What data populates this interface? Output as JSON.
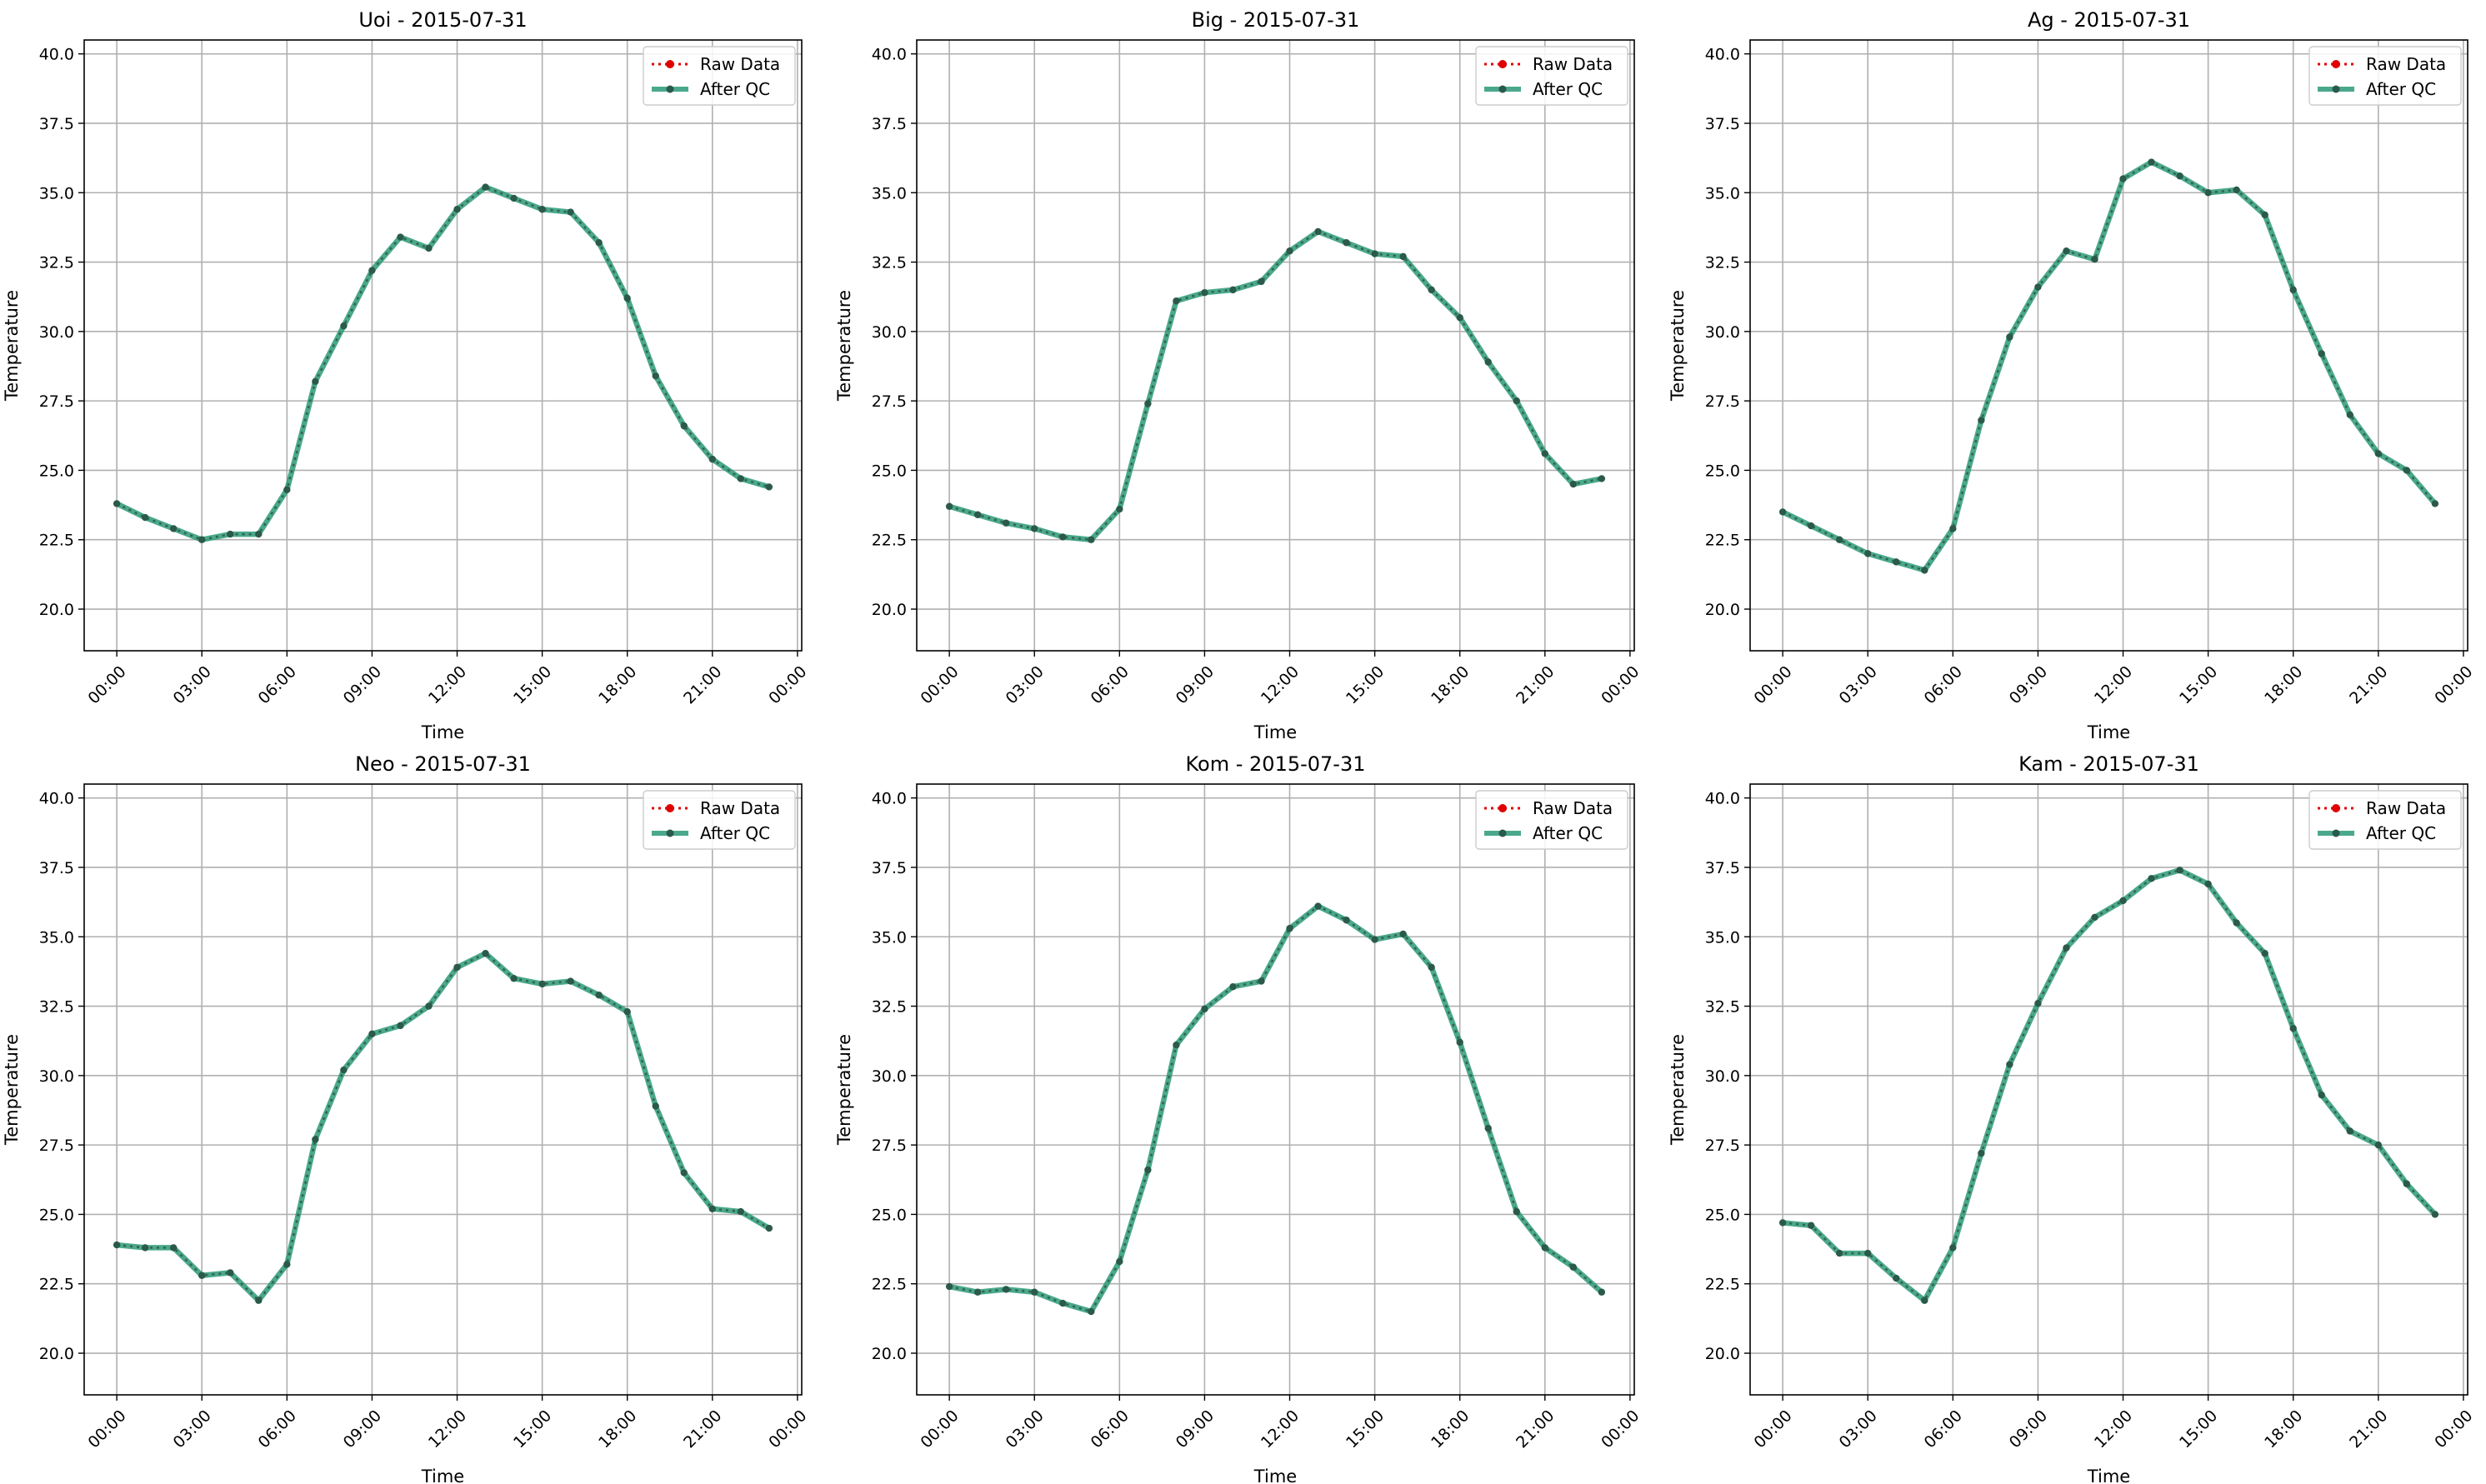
{
  "figure": {
    "date": "2015-07-31"
  },
  "legend": {
    "raw_label": "Raw Data",
    "qc_label": "After QC",
    "placement": "upper right"
  },
  "colors": {
    "raw": "#e00000",
    "qc": "#2a9a78",
    "marker": "#2b5a4a",
    "grid": "#b0b0b0",
    "axis": "#000000"
  },
  "chart_data": [
    {
      "type": "line",
      "title": "Uoi - 2015-07-31",
      "xlabel": "Time",
      "ylabel": "Temperature",
      "ylim": [
        18.5,
        40.5
      ],
      "yticks": [
        "20.0",
        "22.5",
        "25.0",
        "27.5",
        "30.0",
        "32.5",
        "35.0",
        "37.5",
        "40.0"
      ],
      "xticks": [
        "00:00",
        "03:00",
        "06:00",
        "09:00",
        "12:00",
        "15:00",
        "18:00",
        "21:00",
        "00:00"
      ],
      "grid": true,
      "x": [
        "00:00",
        "01:00",
        "02:00",
        "03:00",
        "04:00",
        "05:00",
        "06:00",
        "07:00",
        "08:00",
        "09:00",
        "10:00",
        "11:00",
        "12:00",
        "13:00",
        "14:00",
        "15:00",
        "16:00",
        "17:00",
        "18:00",
        "19:00",
        "20:00",
        "21:00",
        "22:00",
        "23:00"
      ],
      "series": [
        {
          "name": "Raw Data",
          "values": [
            23.8,
            23.3,
            22.9,
            22.5,
            22.7,
            22.7,
            24.3,
            28.2,
            30.2,
            32.2,
            33.4,
            33.0,
            34.4,
            35.2,
            34.8,
            34.4,
            34.3,
            33.2,
            31.2,
            28.4,
            26.6,
            25.4,
            24.7,
            24.4
          ]
        },
        {
          "name": "After QC",
          "values": [
            23.8,
            23.3,
            22.9,
            22.5,
            22.7,
            22.7,
            24.3,
            28.2,
            30.2,
            32.2,
            33.4,
            33.0,
            34.4,
            35.2,
            34.8,
            34.4,
            34.3,
            33.2,
            31.2,
            28.4,
            26.6,
            25.4,
            24.7,
            24.4
          ]
        }
      ]
    },
    {
      "type": "line",
      "title": "Big - 2015-07-31",
      "xlabel": "Time",
      "ylabel": "Temperature",
      "ylim": [
        18.5,
        40.5
      ],
      "yticks": [
        "20.0",
        "22.5",
        "25.0",
        "27.5",
        "30.0",
        "32.5",
        "35.0",
        "37.5",
        "40.0"
      ],
      "xticks": [
        "00:00",
        "03:00",
        "06:00",
        "09:00",
        "12:00",
        "15:00",
        "18:00",
        "21:00",
        "00:00"
      ],
      "grid": true,
      "x": [
        "00:00",
        "01:00",
        "02:00",
        "03:00",
        "04:00",
        "05:00",
        "06:00",
        "07:00",
        "08:00",
        "09:00",
        "10:00",
        "11:00",
        "12:00",
        "13:00",
        "14:00",
        "15:00",
        "16:00",
        "17:00",
        "18:00",
        "19:00",
        "20:00",
        "21:00",
        "22:00",
        "23:00"
      ],
      "series": [
        {
          "name": "Raw Data",
          "values": [
            23.7,
            23.4,
            23.1,
            22.9,
            22.6,
            22.5,
            23.6,
            27.4,
            31.1,
            31.4,
            31.5,
            31.8,
            32.9,
            33.6,
            33.2,
            32.8,
            32.7,
            31.5,
            30.5,
            28.9,
            27.5,
            25.6,
            24.5,
            24.7
          ]
        },
        {
          "name": "After QC",
          "values": [
            23.7,
            23.4,
            23.1,
            22.9,
            22.6,
            22.5,
            23.6,
            27.4,
            31.1,
            31.4,
            31.5,
            31.8,
            32.9,
            33.6,
            33.2,
            32.8,
            32.7,
            31.5,
            30.5,
            28.9,
            27.5,
            25.6,
            24.5,
            24.7
          ]
        }
      ]
    },
    {
      "type": "line",
      "title": "Ag - 2015-07-31",
      "xlabel": "Time",
      "ylabel": "Temperature",
      "ylim": [
        18.5,
        40.5
      ],
      "yticks": [
        "20.0",
        "22.5",
        "25.0",
        "27.5",
        "30.0",
        "32.5",
        "35.0",
        "37.5",
        "40.0"
      ],
      "xticks": [
        "00:00",
        "03:00",
        "06:00",
        "09:00",
        "12:00",
        "15:00",
        "18:00",
        "21:00",
        "00:00"
      ],
      "grid": true,
      "x": [
        "00:00",
        "01:00",
        "02:00",
        "03:00",
        "04:00",
        "05:00",
        "06:00",
        "07:00",
        "08:00",
        "09:00",
        "10:00",
        "11:00",
        "12:00",
        "13:00",
        "14:00",
        "15:00",
        "16:00",
        "17:00",
        "18:00",
        "19:00",
        "20:00",
        "21:00",
        "22:00",
        "23:00"
      ],
      "series": [
        {
          "name": "Raw Data",
          "values": [
            23.5,
            23.0,
            22.5,
            22.0,
            21.7,
            21.4,
            22.9,
            26.8,
            29.8,
            31.6,
            32.9,
            32.6,
            35.5,
            36.1,
            35.6,
            35.0,
            35.1,
            34.2,
            31.5,
            29.2,
            27.0,
            25.6,
            25.0,
            23.8
          ]
        },
        {
          "name": "After QC",
          "values": [
            23.5,
            23.0,
            22.5,
            22.0,
            21.7,
            21.4,
            22.9,
            26.8,
            29.8,
            31.6,
            32.9,
            32.6,
            35.5,
            36.1,
            35.6,
            35.0,
            35.1,
            34.2,
            31.5,
            29.2,
            27.0,
            25.6,
            25.0,
            23.8
          ]
        }
      ]
    },
    {
      "type": "line",
      "title": "Neo - 2015-07-31",
      "xlabel": "Time",
      "ylabel": "Temperature",
      "ylim": [
        18.5,
        40.5
      ],
      "yticks": [
        "20.0",
        "22.5",
        "25.0",
        "27.5",
        "30.0",
        "32.5",
        "35.0",
        "37.5",
        "40.0"
      ],
      "xticks": [
        "00:00",
        "03:00",
        "06:00",
        "09:00",
        "12:00",
        "15:00",
        "18:00",
        "21:00",
        "00:00"
      ],
      "grid": true,
      "x": [
        "00:00",
        "01:00",
        "02:00",
        "03:00",
        "04:00",
        "05:00",
        "06:00",
        "07:00",
        "08:00",
        "09:00",
        "10:00",
        "11:00",
        "12:00",
        "13:00",
        "14:00",
        "15:00",
        "16:00",
        "17:00",
        "18:00",
        "19:00",
        "20:00",
        "21:00",
        "22:00",
        "23:00"
      ],
      "series": [
        {
          "name": "Raw Data",
          "values": [
            23.9,
            23.8,
            23.8,
            22.8,
            22.9,
            21.9,
            23.2,
            27.7,
            30.2,
            31.5,
            31.8,
            32.5,
            33.9,
            34.4,
            33.5,
            33.3,
            33.4,
            32.9,
            32.3,
            28.9,
            26.5,
            25.2,
            25.1,
            24.5
          ]
        },
        {
          "name": "After QC",
          "values": [
            23.9,
            23.8,
            23.8,
            22.8,
            22.9,
            21.9,
            23.2,
            27.7,
            30.2,
            31.5,
            31.8,
            32.5,
            33.9,
            34.4,
            33.5,
            33.3,
            33.4,
            32.9,
            32.3,
            28.9,
            26.5,
            25.2,
            25.1,
            24.5
          ]
        }
      ]
    },
    {
      "type": "line",
      "title": "Kom - 2015-07-31",
      "xlabel": "Time",
      "ylabel": "Temperature",
      "ylim": [
        18.5,
        40.5
      ],
      "yticks": [
        "20.0",
        "22.5",
        "25.0",
        "27.5",
        "30.0",
        "32.5",
        "35.0",
        "37.5",
        "40.0"
      ],
      "xticks": [
        "00:00",
        "03:00",
        "06:00",
        "09:00",
        "12:00",
        "15:00",
        "18:00",
        "21:00",
        "00:00"
      ],
      "grid": true,
      "x": [
        "00:00",
        "01:00",
        "02:00",
        "03:00",
        "04:00",
        "05:00",
        "06:00",
        "07:00",
        "08:00",
        "09:00",
        "10:00",
        "11:00",
        "12:00",
        "13:00",
        "14:00",
        "15:00",
        "16:00",
        "17:00",
        "18:00",
        "19:00",
        "20:00",
        "21:00",
        "22:00",
        "23:00"
      ],
      "series": [
        {
          "name": "Raw Data",
          "values": [
            22.4,
            22.2,
            22.3,
            22.2,
            21.8,
            21.5,
            23.3,
            26.6,
            31.1,
            32.4,
            33.2,
            33.4,
            35.3,
            36.1,
            35.6,
            34.9,
            35.1,
            33.9,
            31.2,
            28.1,
            25.1,
            23.8,
            23.1,
            22.2
          ]
        },
        {
          "name": "After QC",
          "values": [
            22.4,
            22.2,
            22.3,
            22.2,
            21.8,
            21.5,
            23.3,
            26.6,
            31.1,
            32.4,
            33.2,
            33.4,
            35.3,
            36.1,
            35.6,
            34.9,
            35.1,
            33.9,
            31.2,
            28.1,
            25.1,
            23.8,
            23.1,
            22.2
          ]
        }
      ]
    },
    {
      "type": "line",
      "title": "Kam - 2015-07-31",
      "xlabel": "Time",
      "ylabel": "Temperature",
      "ylim": [
        18.5,
        40.5
      ],
      "yticks": [
        "20.0",
        "22.5",
        "25.0",
        "27.5",
        "30.0",
        "32.5",
        "35.0",
        "37.5",
        "40.0"
      ],
      "xticks": [
        "00:00",
        "03:00",
        "06:00",
        "09:00",
        "12:00",
        "15:00",
        "18:00",
        "21:00",
        "00:00"
      ],
      "grid": true,
      "x": [
        "00:00",
        "01:00",
        "02:00",
        "03:00",
        "04:00",
        "05:00",
        "06:00",
        "07:00",
        "08:00",
        "09:00",
        "10:00",
        "11:00",
        "12:00",
        "13:00",
        "14:00",
        "15:00",
        "16:00",
        "17:00",
        "18:00",
        "19:00",
        "20:00",
        "21:00",
        "22:00",
        "23:00"
      ],
      "series": [
        {
          "name": "Raw Data",
          "values": [
            24.7,
            24.6,
            23.6,
            23.6,
            22.7,
            21.9,
            23.8,
            27.2,
            30.4,
            32.6,
            34.6,
            35.7,
            36.3,
            37.1,
            37.4,
            36.9,
            35.5,
            34.4,
            31.7,
            29.3,
            28.0,
            27.5,
            26.1,
            25.0
          ]
        },
        {
          "name": "After QC",
          "values": [
            24.7,
            24.6,
            23.6,
            23.6,
            22.7,
            21.9,
            23.8,
            27.2,
            30.4,
            32.6,
            34.6,
            35.7,
            36.3,
            37.1,
            37.4,
            36.9,
            35.5,
            34.4,
            31.7,
            29.3,
            28.0,
            27.5,
            26.1,
            25.0
          ]
        }
      ]
    }
  ]
}
